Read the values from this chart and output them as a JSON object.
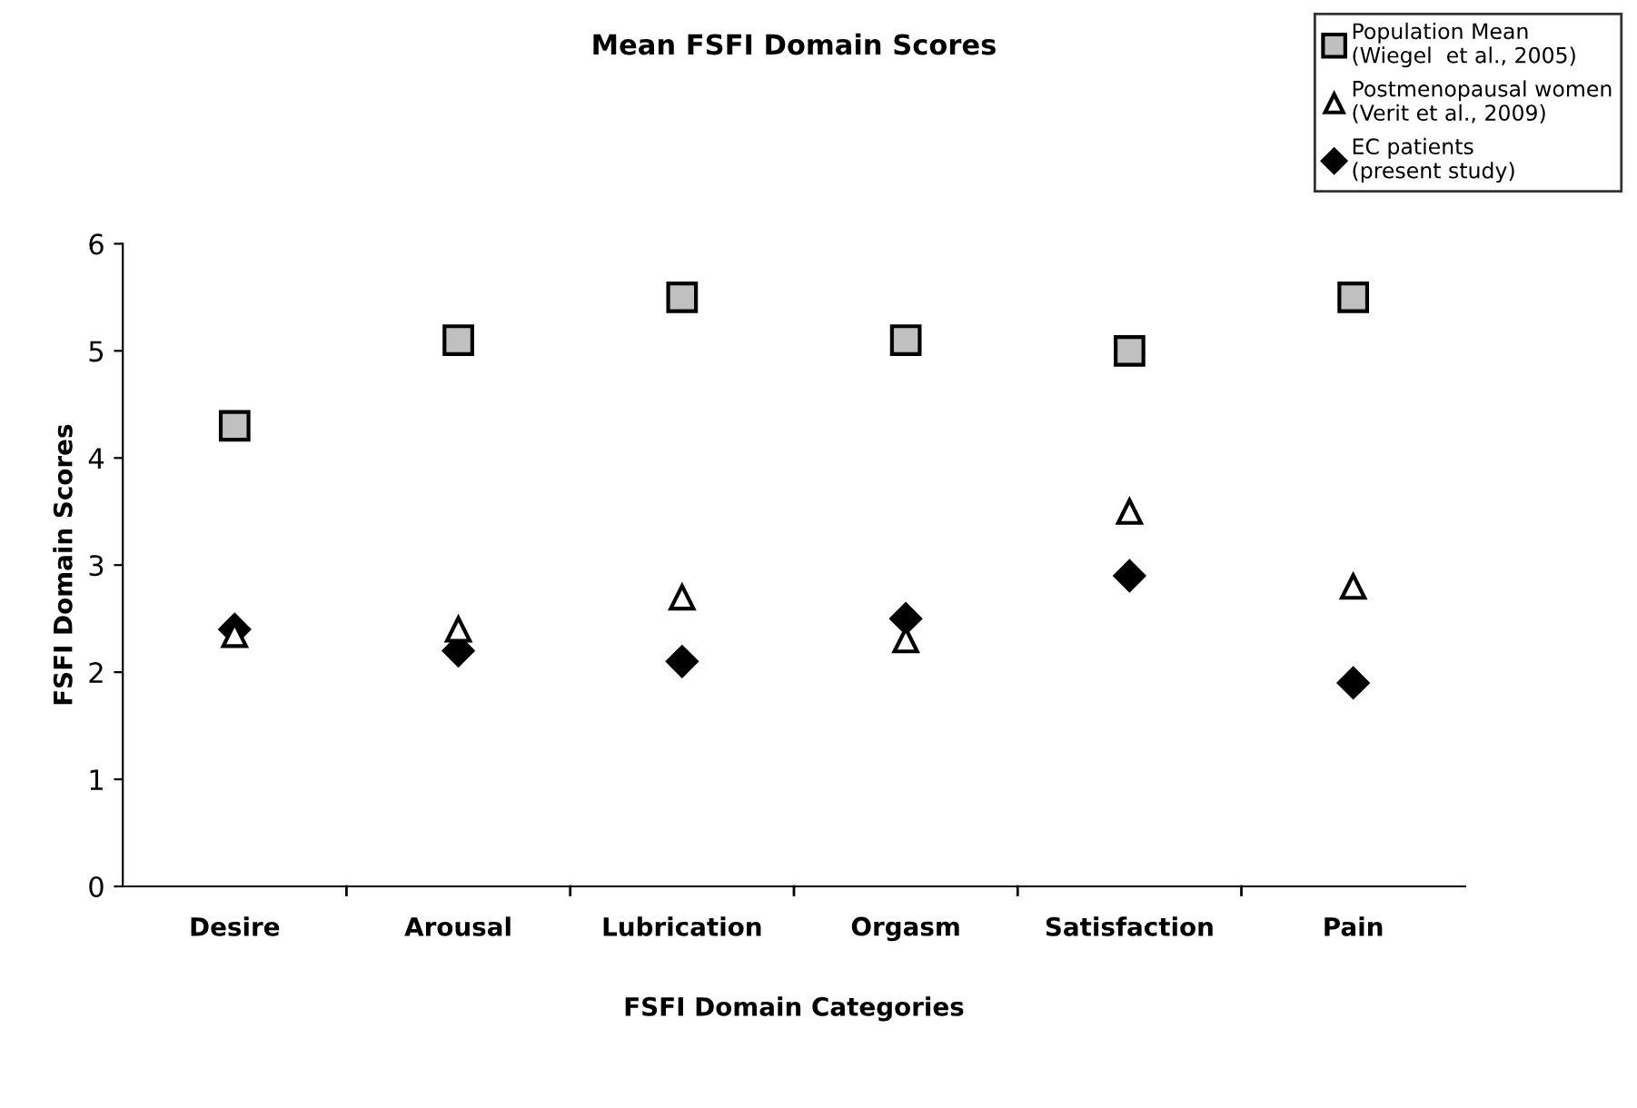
{
  "chart_data": {
    "type": "scatter",
    "title": "Mean FSFI Domain Scores",
    "xlabel": "FSFI Domain Categories",
    "ylabel": "FSFI Domain Scores",
    "categories": [
      "Desire",
      "Arousal",
      "Lubrication",
      "Orgasm",
      "Satisfaction",
      "Pain"
    ],
    "series": [
      {
        "name": "Population Mean\n(Wiegel  et al., 2005)",
        "color": "#c0c0c0",
        "marker": "square",
        "values": [
          4.3,
          5.1,
          5.5,
          5.1,
          5.0,
          5.5
        ]
      },
      {
        "name": "Postmenopausal women\n(Verit et al., 2009)",
        "color": "#ffffff",
        "marker": "triangle",
        "values": [
          2.35,
          2.4,
          2.7,
          2.3,
          3.5,
          2.8
        ]
      },
      {
        "name": "EC patients\n(present study)",
        "color": "#000000",
        "marker": "diamond",
        "values": [
          2.4,
          2.2,
          2.1,
          2.5,
          2.9,
          1.9
        ]
      }
    ],
    "ylim": [
      0,
      6
    ],
    "yticks": [
      0,
      1,
      2,
      3,
      4,
      5,
      6
    ],
    "grid": false,
    "legend": "top right"
  }
}
